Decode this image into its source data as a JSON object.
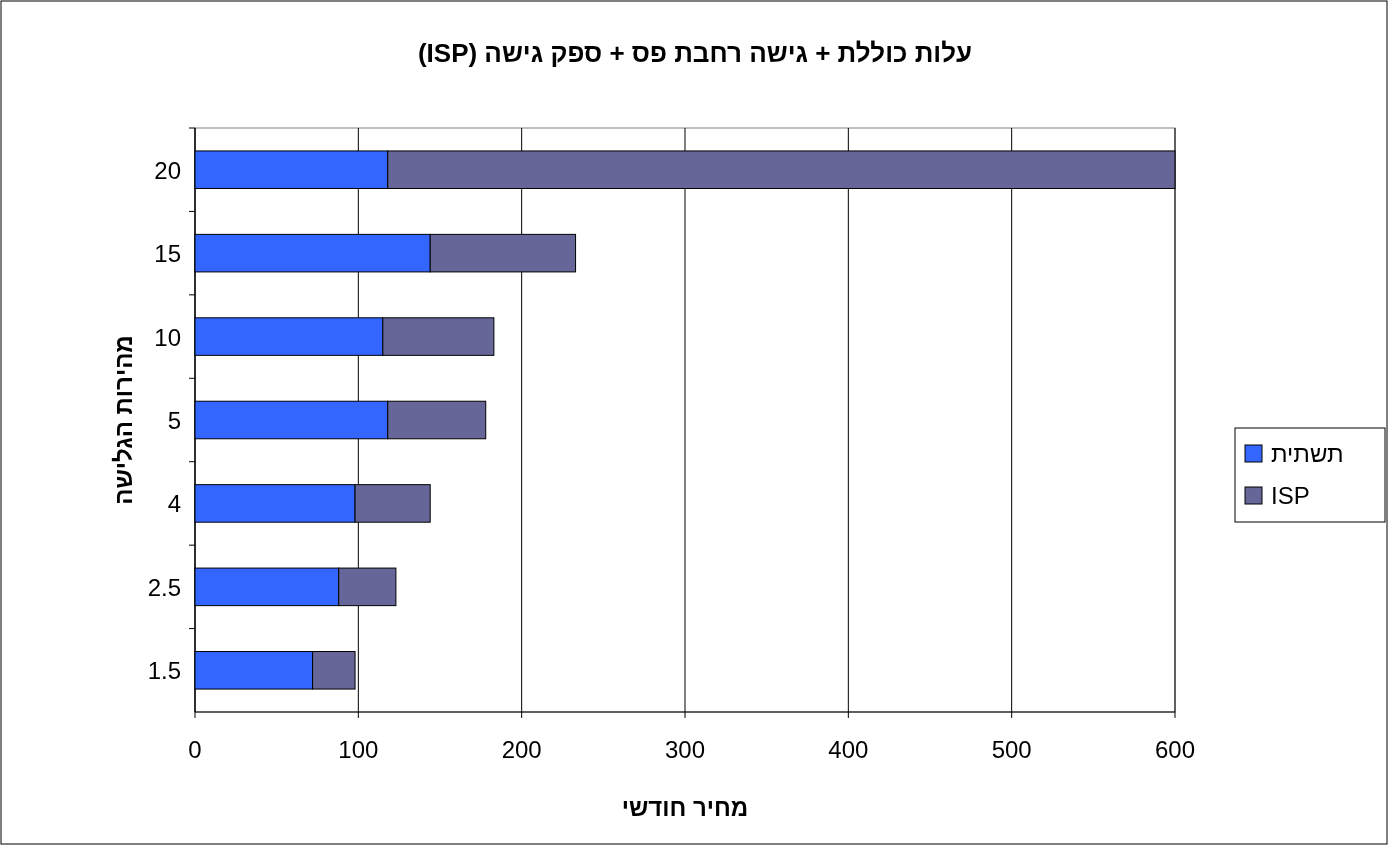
{
  "chart_data": {
    "type": "bar",
    "orientation": "horizontal",
    "stacked": true,
    "title": "עלות כוללת + גישה רחבת פס + ספק גישה (ISP)",
    "xlabel": "מחיר חודשי",
    "ylabel": "מהירות הגלישה",
    "categories": [
      "20",
      "15",
      "10",
      "5",
      "4",
      "2.5",
      "1.5"
    ],
    "series": [
      {
        "name": "תשתית",
        "color": "#3366ff",
        "values": [
          118,
          144,
          115,
          118,
          98,
          88,
          72
        ]
      },
      {
        "name": "ISP",
        "color": "#666699",
        "values": [
          482,
          89,
          68,
          60,
          46,
          35,
          26
        ]
      }
    ],
    "xlim": [
      0,
      600
    ],
    "xticks": [
      0,
      100,
      200,
      300,
      400,
      500,
      600
    ],
    "grid": "x",
    "legend": "right"
  }
}
